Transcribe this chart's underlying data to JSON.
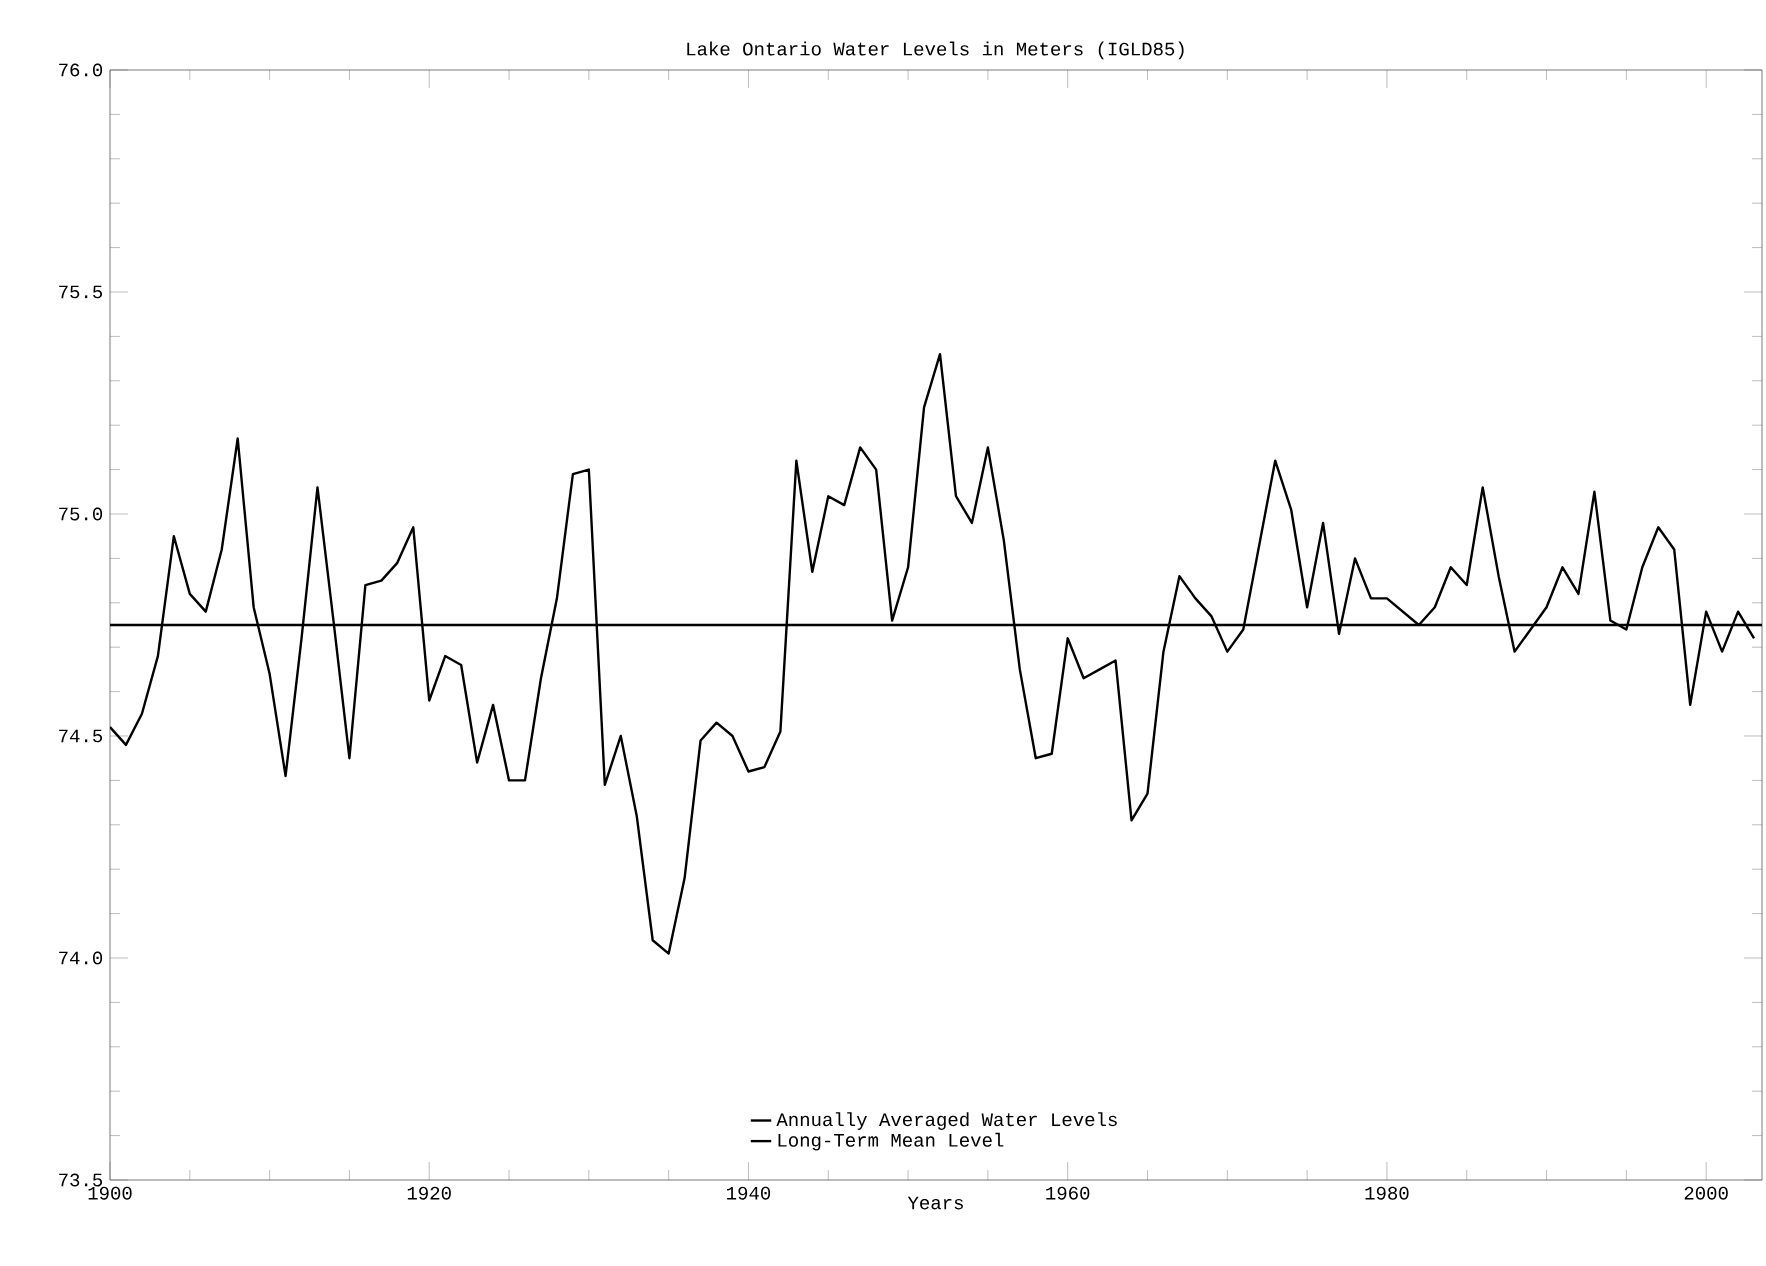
{
  "chart_data": {
    "type": "line",
    "title": "Lake Ontario Water Levels in Meters (IGLD85)",
    "xlabel": "Years",
    "x": [
      1900,
      1901,
      1902,
      1903,
      1904,
      1905,
      1906,
      1907,
      1908,
      1909,
      1910,
      1911,
      1912,
      1913,
      1914,
      1915,
      1916,
      1917,
      1918,
      1919,
      1920,
      1921,
      1922,
      1923,
      1924,
      1925,
      1926,
      1927,
      1928,
      1929,
      1930,
      1931,
      1932,
      1933,
      1934,
      1935,
      1936,
      1937,
      1938,
      1939,
      1940,
      1941,
      1942,
      1943,
      1944,
      1945,
      1946,
      1947,
      1948,
      1949,
      1950,
      1951,
      1952,
      1953,
      1954,
      1955,
      1956,
      1957,
      1958,
      1959,
      1960,
      1961,
      1962,
      1963,
      1964,
      1965,
      1966,
      1967,
      1968,
      1969,
      1970,
      1971,
      1972,
      1973,
      1974,
      1975,
      1976,
      1977,
      1978,
      1979,
      1980,
      1981,
      1982,
      1983,
      1984,
      1985,
      1986,
      1987,
      1988,
      1989,
      1990,
      1991,
      1992,
      1993,
      1994,
      1995,
      1996,
      1997,
      1998,
      1999,
      2000,
      2001,
      2002,
      2003
    ],
    "series": [
      {
        "name": "Annually Averaged Water Levels",
        "color": "#000000",
        "values": [
          74.52,
          74.48,
          74.55,
          74.68,
          74.95,
          74.82,
          74.78,
          74.92,
          75.17,
          74.79,
          74.64,
          74.41,
          74.72,
          75.06,
          74.76,
          74.45,
          74.84,
          74.85,
          74.89,
          74.97,
          74.58,
          74.68,
          74.66,
          74.44,
          74.57,
          74.4,
          74.4,
          74.63,
          74.81,
          75.09,
          75.1,
          74.39,
          74.5,
          74.32,
          74.04,
          74.01,
          74.18,
          74.49,
          74.53,
          74.5,
          74.42,
          74.43,
          74.51,
          75.12,
          74.87,
          75.04,
          75.02,
          75.15,
          75.1,
          74.76,
          74.88,
          75.24,
          75.36,
          75.04,
          74.98,
          75.15,
          74.94,
          74.65,
          74.45,
          74.46,
          74.72,
          74.63,
          74.65,
          74.67,
          74.31,
          74.37,
          74.69,
          74.86,
          74.81,
          74.77,
          74.69,
          74.74,
          74.93,
          75.12,
          75.01,
          74.79,
          74.98,
          74.73,
          74.9,
          74.81,
          74.81,
          74.78,
          74.75,
          74.79,
          74.88,
          74.84,
          75.06,
          74.86,
          74.69,
          74.74,
          74.79,
          74.88,
          74.82,
          75.05,
          74.76,
          74.74,
          74.88,
          74.97,
          74.92,
          74.57,
          74.78,
          74.69,
          74.78,
          74.72
        ]
      }
    ],
    "ref_lines": [
      {
        "axis": "y",
        "value": 74.75,
        "label": "Long-Term Mean Level",
        "color": "#000000"
      }
    ],
    "xlim": [
      1900,
      2003.5
    ],
    "ylim": [
      73.5,
      76.0
    ],
    "xticks": [
      1900,
      1920,
      1940,
      1960,
      1980,
      2000
    ],
    "yticks": [
      {
        "value": 73.5,
        "label": "73.5"
      },
      {
        "value": 74.0,
        "label": "74.0"
      },
      {
        "value": 74.5,
        "label": "74.5"
      },
      {
        "value": 75.0,
        "label": "75.0"
      },
      {
        "value": 75.5,
        "label": "75.5"
      },
      {
        "value": 76.0,
        "label": "76.0"
      }
    ],
    "grid": false,
    "legend": "bottom",
    "line_style": "solid",
    "marker": "none"
  }
}
